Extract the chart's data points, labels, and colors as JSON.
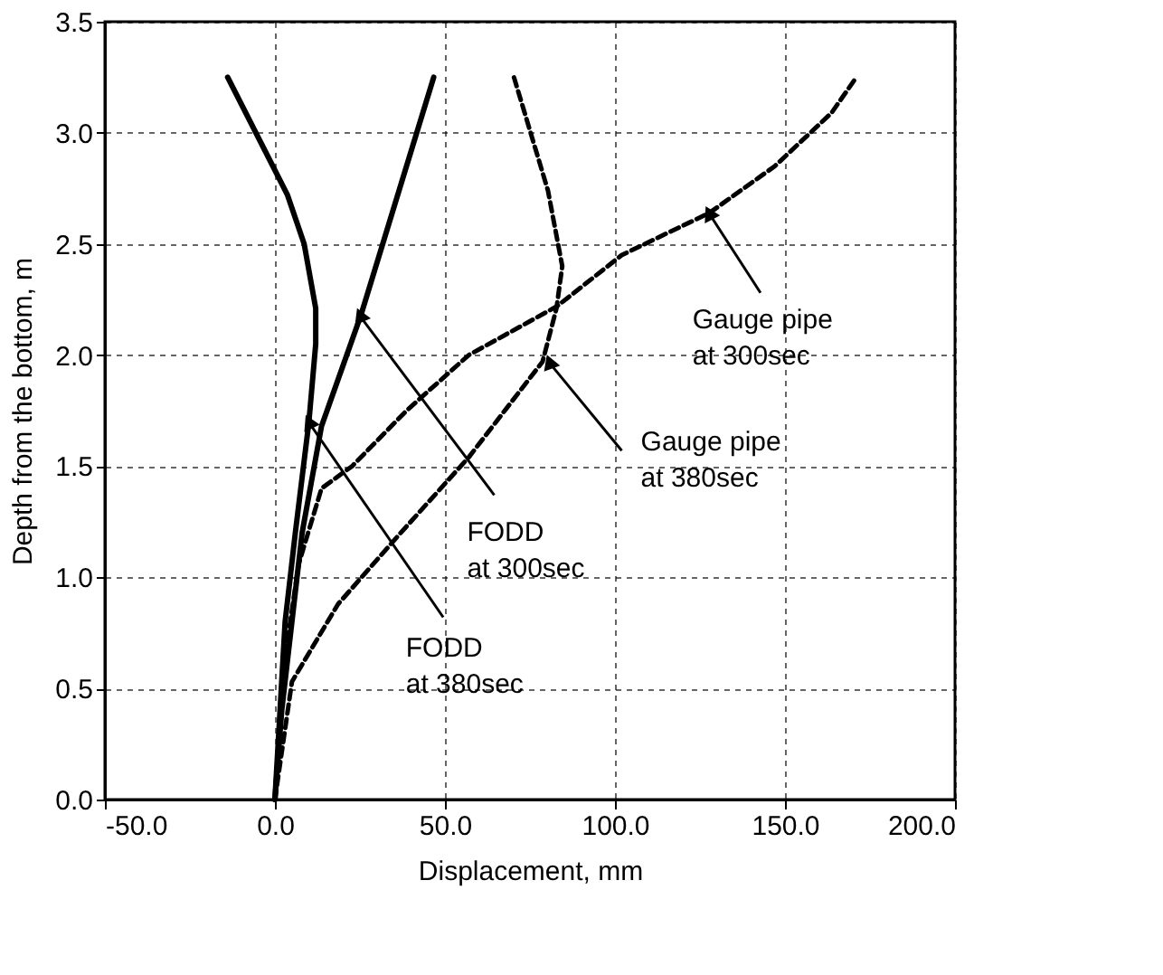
{
  "chart_data": {
    "type": "line",
    "xlabel": "Displacement, mm",
    "ylabel": "Depth from the bottom, m",
    "xlim": [
      -50,
      200
    ],
    "xticks": [
      {
        "value": -50,
        "label": "-50.0"
      },
      {
        "value": 0,
        "label": "0.0"
      },
      {
        "value": 50,
        "label": "50.0"
      },
      {
        "value": 100,
        "label": "100.0"
      },
      {
        "value": 150,
        "label": "150.0"
      },
      {
        "value": 200,
        "label": "200.0"
      }
    ],
    "ylim": [
      0,
      3.5
    ],
    "yticks": [
      {
        "value": 0,
        "label": "0.0"
      },
      {
        "value": 0.5,
        "label": "0.5"
      },
      {
        "value": 1,
        "label": "1.0"
      },
      {
        "value": 1.5,
        "label": "1.5"
      },
      {
        "value": 2,
        "label": "2.0"
      },
      {
        "value": 2.5,
        "label": "2.5"
      },
      {
        "value": 3,
        "label": "3.0"
      },
      {
        "value": 3.5,
        "label": "3.5"
      }
    ],
    "grid": true,
    "marker": "none",
    "series": [
      {
        "color": "#000000",
        "line_style": "solid",
        "x": [
          0,
          1.5,
          3,
          6,
          10,
          12,
          12,
          8.6,
          3.7,
          -13.9
        ],
        "values": [
          0,
          0.4,
          0.8,
          1.2,
          1.7,
          2.05,
          2.21,
          2.5,
          2.72,
          3.25
        ]
      },
      {
        "color": "#000000",
        "line_style": "solid",
        "x": [
          0,
          2,
          5,
          8,
          13.7,
          25.3,
          46.7
        ],
        "values": [
          0,
          0.4,
          0.8,
          1.2,
          1.68,
          2.18,
          3.25
        ]
      },
      {
        "color": "#000000",
        "line_style": "dashed",
        "x": [
          0,
          5,
          18.6,
          37,
          57,
          78.7,
          82.8,
          84.5,
          80.3,
          70.3
        ],
        "values": [
          0,
          0.53,
          0.88,
          1.2,
          1.54,
          1.97,
          2.21,
          2.4,
          2.74,
          3.25
        ]
      },
      {
        "color": "#000000",
        "line_style": "dashed",
        "x": [
          0,
          2.7,
          7,
          13.7,
          22.7,
          38.7,
          57,
          83,
          102,
          127.8,
          147,
          163.7,
          171
        ],
        "values": [
          0,
          0.61,
          1.06,
          1.4,
          1.5,
          1.75,
          2.0,
          2.22,
          2.45,
          2.64,
          2.85,
          3.09,
          3.25
        ]
      }
    ],
    "annotations": [
      {
        "text": "Gauge pipe\nat 300sec",
        "x": 128,
        "y": 2.63
      },
      {
        "text": "Gauge pipe\nat 380sec",
        "x": 81,
        "y": 1.96
      },
      {
        "text": "FODD\nat 300sec",
        "x": 25.3,
        "y": 2.17
      },
      {
        "text": "FODD\nat 380sec",
        "x": 10.3,
        "y": 1.69
      }
    ]
  }
}
